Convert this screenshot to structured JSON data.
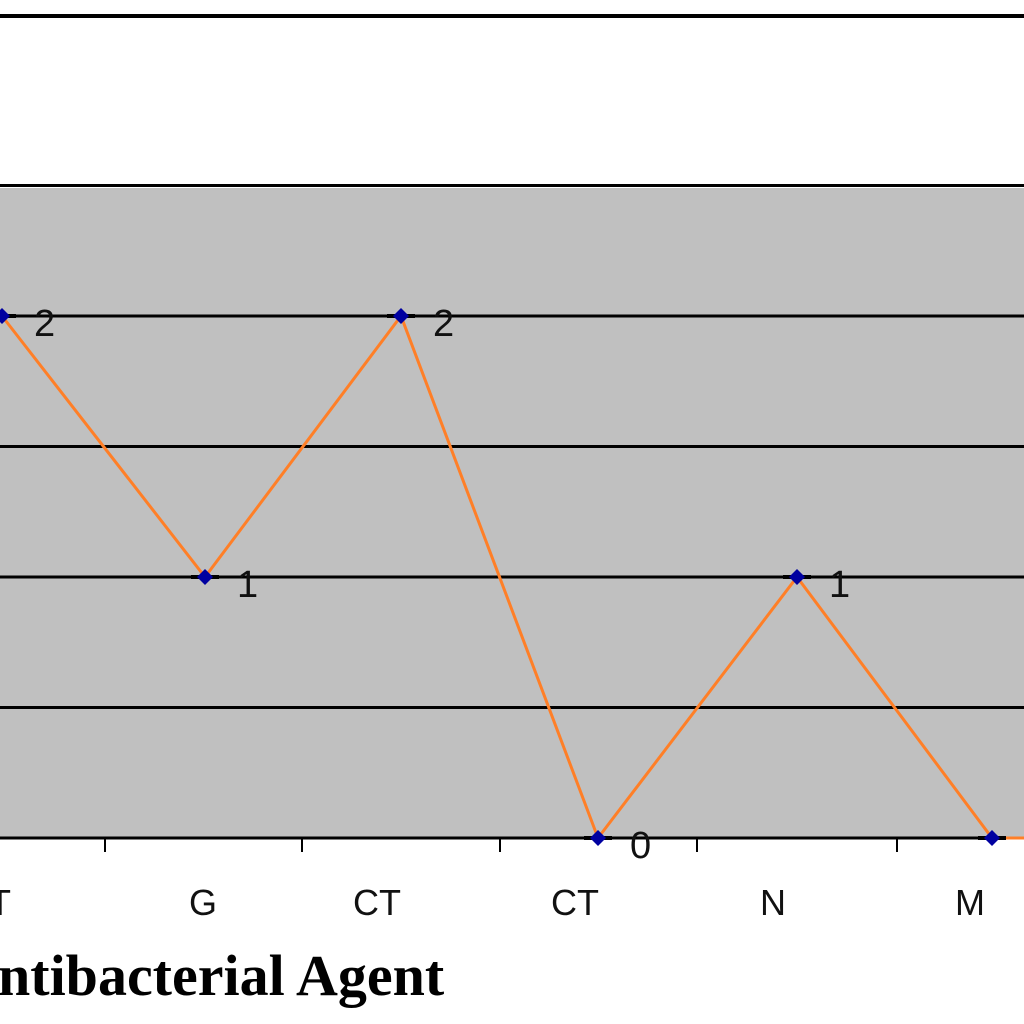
{
  "chart_data": {
    "type": "line",
    "categories": [
      "T",
      "G",
      "CT",
      "CT",
      "N",
      "M"
    ],
    "series": [
      {
        "values": [
          2,
          1,
          2,
          0,
          1,
          0
        ],
        "data_labels": [
          "2",
          "1",
          "2",
          "0",
          "1",
          ""
        ]
      }
    ],
    "xlabel": "ntibacterial Agent",
    "ylabel": "",
    "grid": true,
    "colors": {
      "plot_background": "#c0c0c0",
      "line": "#ff7f27",
      "marker": "#0000a0",
      "gridline": "#000000"
    }
  }
}
